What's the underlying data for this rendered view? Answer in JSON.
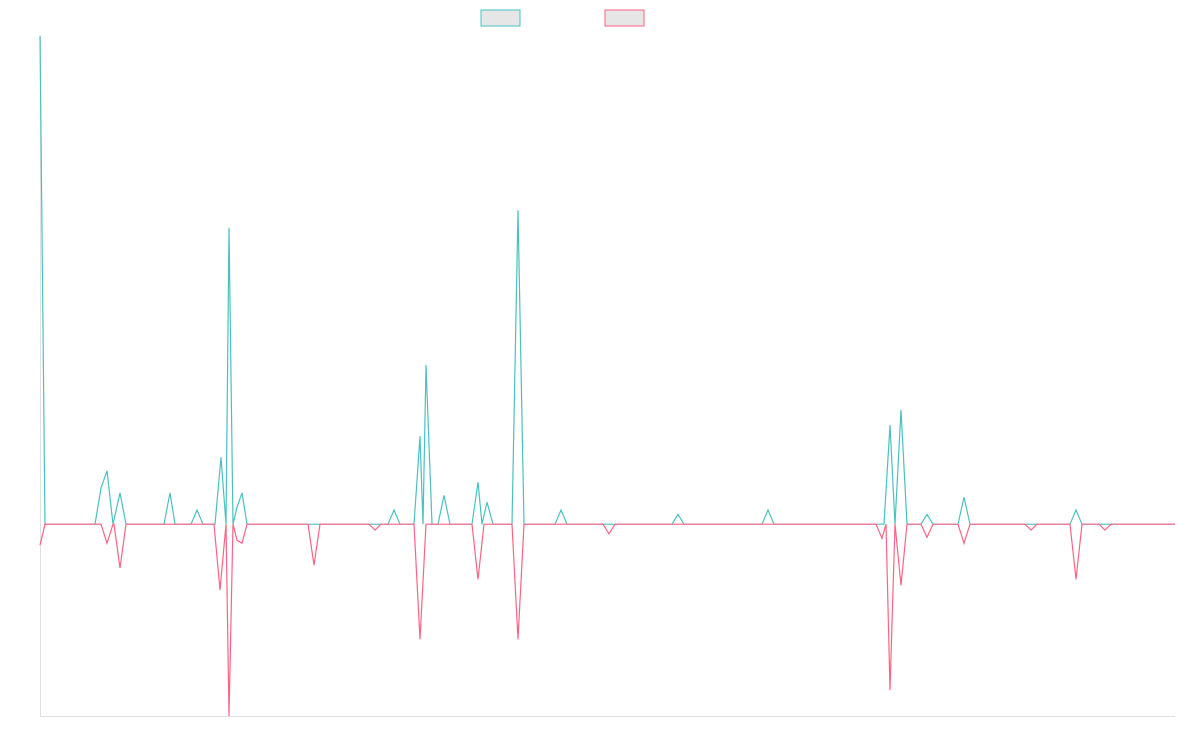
{
  "chart_data": {
    "type": "line",
    "xlim": [
      0,
      1135
    ],
    "ylim": [
      -39.3,
      100
    ],
    "grid": false,
    "series": [
      {
        "color": "#4bc0c0",
        "x": [
          0,
          5,
          55,
          61,
          67,
          73,
          80,
          86,
          124,
          130,
          135,
          151,
          157,
          163,
          175,
          181,
          186,
          189,
          193,
          197,
          202,
          207,
          348,
          354,
          360,
          374,
          380,
          383,
          386,
          392,
          398,
          404,
          410,
          432,
          438,
          442,
          447,
          453,
          472,
          478,
          484,
          515,
          521,
          527,
          632,
          638,
          644,
          722,
          728,
          734,
          844,
          850,
          855,
          861,
          867,
          881,
          887,
          893,
          918,
          924,
          930,
          1030,
          1036,
          1042,
          1135
        ],
        "values": [
          100,
          0,
          0,
          7.4,
          10.9,
          0,
          6.4,
          0,
          0,
          6.4,
          0,
          0,
          2.9,
          0,
          0,
          13.7,
          0,
          60.7,
          0,
          3.5,
          6.4,
          0,
          0,
          2.9,
          0,
          0,
          18.0,
          0,
          32.6,
          0,
          0,
          5.9,
          0,
          0,
          8.6,
          0,
          4.5,
          0,
          0,
          64.3,
          0,
          0,
          2.9,
          0,
          0,
          2.0,
          0,
          0,
          2.9,
          0,
          0,
          20.3,
          0,
          23.4,
          0,
          0,
          2.0,
          0,
          0,
          5.5,
          0,
          0,
          2.9,
          0,
          0
        ]
      },
      {
        "color": "#ff6384",
        "x": [
          0,
          5,
          61,
          67,
          73,
          74,
          80,
          86,
          174,
          180,
          186,
          189,
          193,
          197,
          202,
          207,
          268,
          274,
          280,
          329,
          335,
          341,
          374,
          380,
          386,
          432,
          438,
          444,
          472,
          478,
          484,
          563,
          569,
          575,
          836,
          842,
          846,
          850,
          855,
          861,
          867,
          881,
          887,
          893,
          918,
          924,
          930,
          985,
          991,
          997,
          1030,
          1036,
          1042,
          1059,
          1065,
          1071,
          1135
        ],
        "values": [
          -4.3,
          0,
          0,
          -3.9,
          0,
          0,
          -9.0,
          0,
          0,
          -13.5,
          0,
          -39.3,
          0,
          -3.3,
          -3.9,
          0,
          0,
          -8.4,
          0,
          0,
          -1.2,
          0,
          0,
          -23.6,
          0,
          0,
          -11.3,
          0,
          0,
          -23.6,
          0,
          0,
          -2.0,
          0,
          0,
          -2.9,
          0,
          -34.0,
          0,
          -12.5,
          0,
          0,
          -2.7,
          0,
          0,
          -3.9,
          0,
          0,
          -1.2,
          0,
          0,
          -11.3,
          0,
          0,
          -1.2,
          0,
          0
        ]
      }
    ]
  }
}
